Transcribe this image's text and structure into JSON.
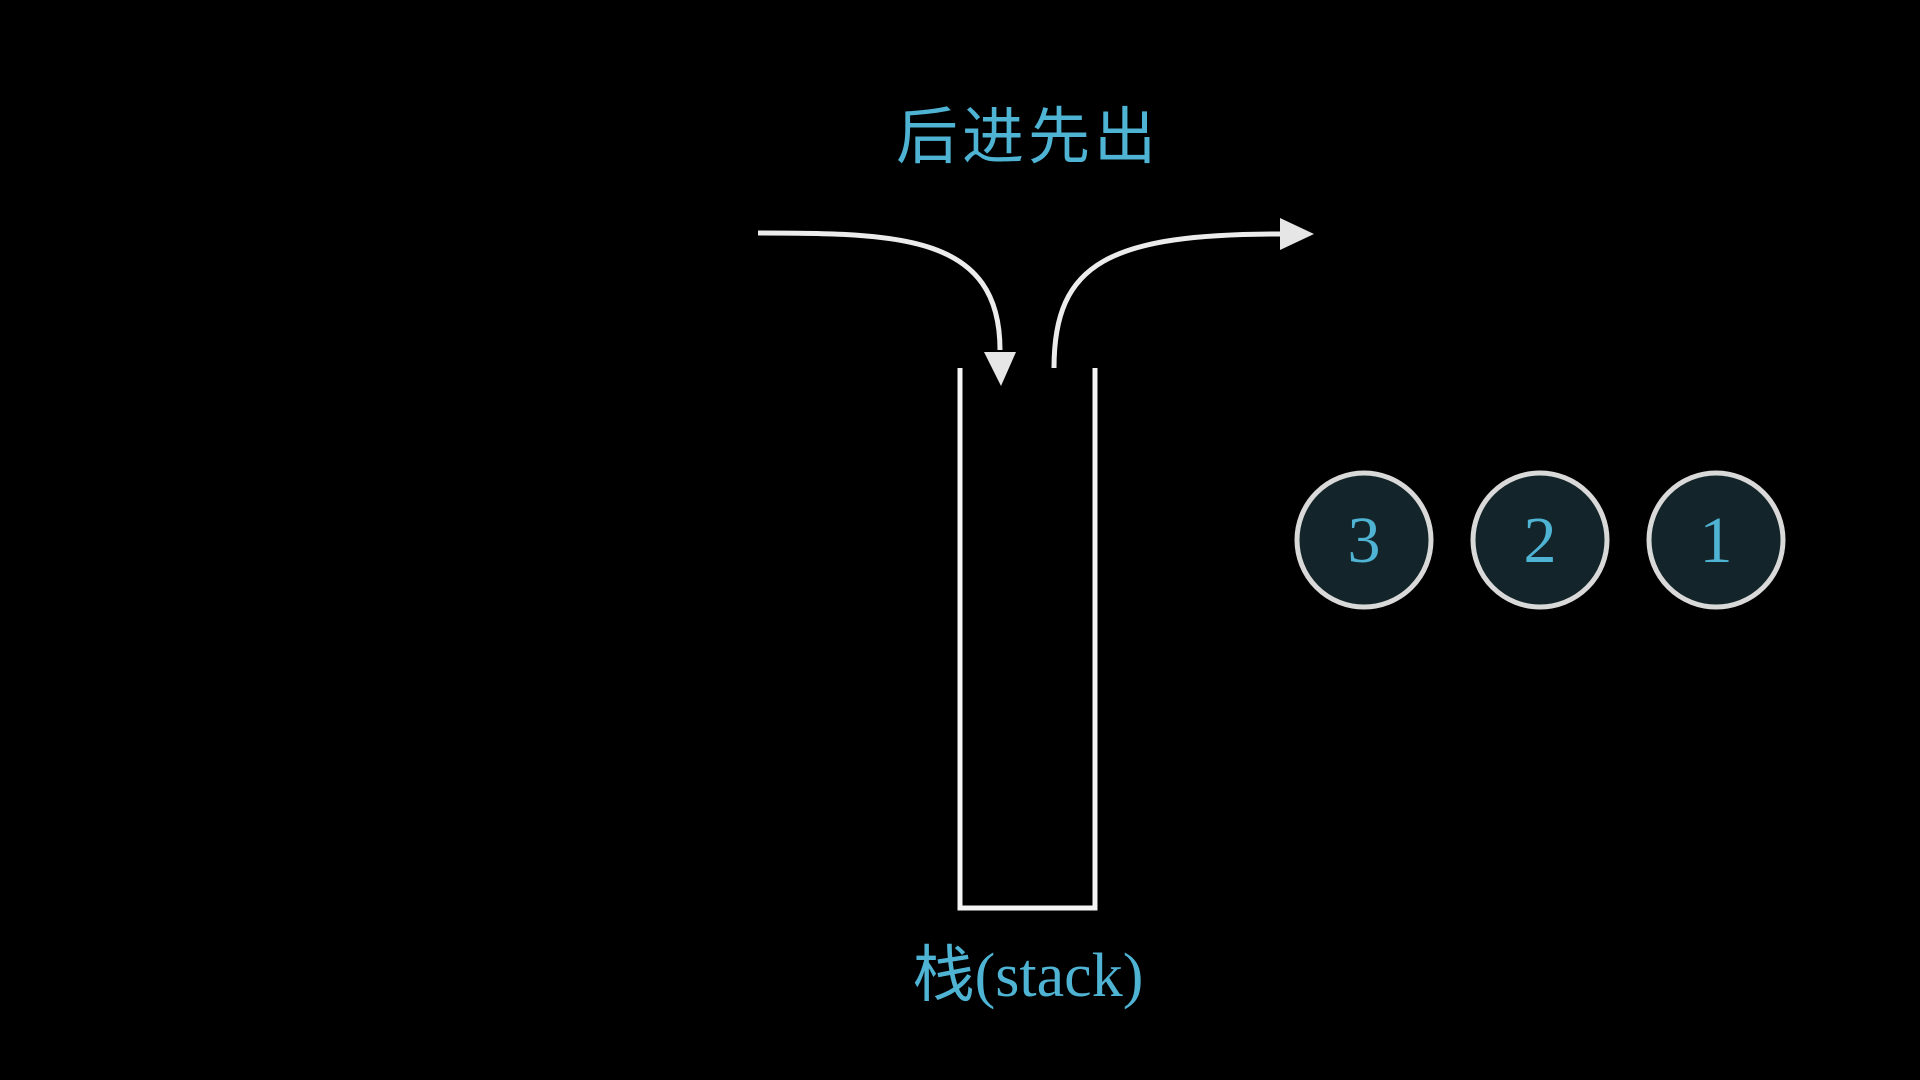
{
  "title": "后进先出",
  "caption": "栈(stack)",
  "colors": {
    "background": "#000000",
    "text": "#4fb3d3",
    "stroke": "#f2f2f2",
    "ball_fill": "#13252a",
    "ball_stroke": "#d9d9d9"
  },
  "items": [
    {
      "label": "3"
    },
    {
      "label": "2"
    },
    {
      "label": "1"
    }
  ]
}
